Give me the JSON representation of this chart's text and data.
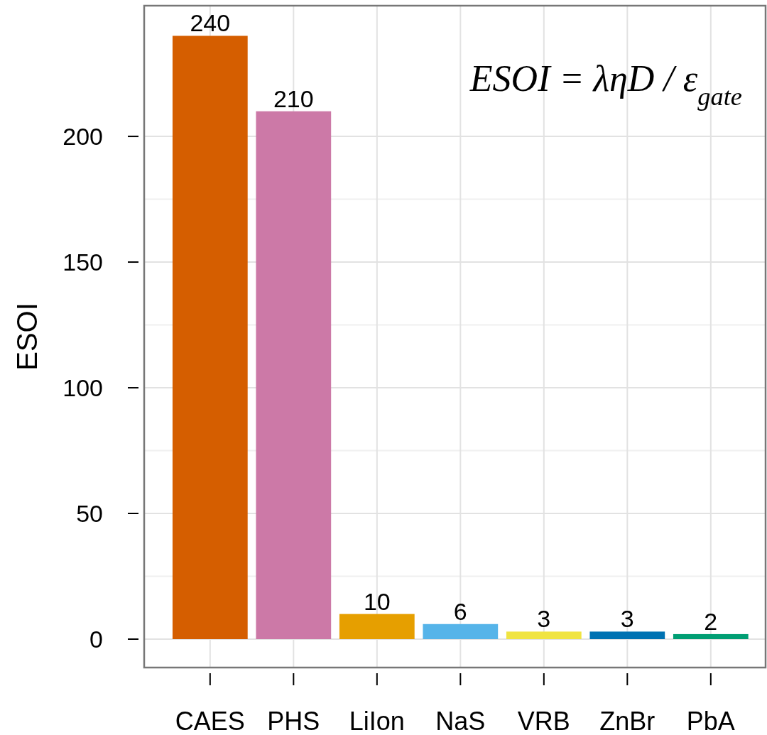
{
  "chart_data": {
    "type": "bar",
    "categories": [
      "CAES",
      "PHS",
      "LiIon",
      "NaS",
      "VRB",
      "ZnBr",
      "PbA"
    ],
    "values": [
      240,
      210,
      10,
      6,
      3,
      3,
      2
    ],
    "colors": [
      "#d55e00",
      "#cc79a7",
      "#e69f00",
      "#56b4e9",
      "#f0e442",
      "#0072b2",
      "#009e73"
    ],
    "ylabel": "ESOI",
    "ylim": [
      -11.3,
      252
    ],
    "yticks": [
      0,
      50,
      100,
      150,
      200
    ],
    "grid": true,
    "data_labels": true,
    "annotations": [
      "ESOI = ληD / ε$_{gate}$"
    ]
  }
}
